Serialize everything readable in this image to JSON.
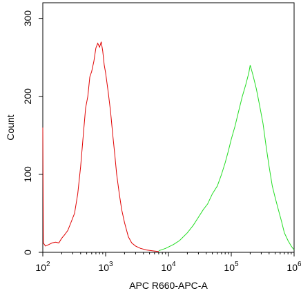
{
  "chart_data": {
    "type": "line",
    "title": "",
    "xlabel": "APC R660-APC-A",
    "ylabel": "Count",
    "x_scale": "log",
    "xlim": [
      100,
      1000000
    ],
    "ylim": [
      0,
      320
    ],
    "x_ticks": [
      {
        "value": 100,
        "base": "10",
        "exp": "2"
      },
      {
        "value": 1000,
        "base": "10",
        "exp": "3"
      },
      {
        "value": 10000,
        "base": "10",
        "exp": "4"
      },
      {
        "value": 100000,
        "base": "10",
        "exp": "5"
      },
      {
        "value": 1000000,
        "base": "10",
        "exp": "6"
      }
    ],
    "y_ticks": [
      "0",
      "100",
      "200",
      "300"
    ],
    "y_tick_values": [
      0,
      100,
      200,
      300
    ],
    "grid": false,
    "legend": "none",
    "series": [
      {
        "color": "#e00000",
        "points": [
          [
            100,
            160
          ],
          [
            102,
            12
          ],
          [
            110,
            8
          ],
          [
            125,
            10
          ],
          [
            140,
            12
          ],
          [
            160,
            13
          ],
          [
            180,
            12
          ],
          [
            200,
            18
          ],
          [
            220,
            22
          ],
          [
            250,
            28
          ],
          [
            280,
            38
          ],
          [
            320,
            50
          ],
          [
            360,
            75
          ],
          [
            400,
            110
          ],
          [
            440,
            150
          ],
          [
            480,
            185
          ],
          [
            520,
            200
          ],
          [
            560,
            225
          ],
          [
            600,
            232
          ],
          [
            650,
            245
          ],
          [
            700,
            262
          ],
          [
            750,
            268
          ],
          [
            800,
            263
          ],
          [
            850,
            270
          ],
          [
            900,
            258
          ],
          [
            950,
            240
          ],
          [
            1000,
            230
          ],
          [
            1100,
            205
          ],
          [
            1200,
            180
          ],
          [
            1300,
            150
          ],
          [
            1400,
            125
          ],
          [
            1500,
            100
          ],
          [
            1650,
            75
          ],
          [
            1800,
            55
          ],
          [
            2000,
            38
          ],
          [
            2300,
            20
          ],
          [
            2600,
            12
          ],
          [
            3000,
            8
          ],
          [
            3600,
            5
          ],
          [
            4500,
            3
          ],
          [
            5500,
            2
          ],
          [
            7000,
            1
          ]
        ]
      },
      {
        "color": "#22dd22",
        "points": [
          [
            7000,
            2
          ],
          [
            9000,
            5
          ],
          [
            12000,
            10
          ],
          [
            15000,
            15
          ],
          [
            20000,
            25
          ],
          [
            25000,
            35
          ],
          [
            30000,
            45
          ],
          [
            36000,
            55
          ],
          [
            42000,
            62
          ],
          [
            50000,
            75
          ],
          [
            60000,
            85
          ],
          [
            70000,
            100
          ],
          [
            80000,
            115
          ],
          [
            90000,
            130
          ],
          [
            100000,
            145
          ],
          [
            115000,
            162
          ],
          [
            130000,
            180
          ],
          [
            150000,
            200
          ],
          [
            170000,
            215
          ],
          [
            190000,
            230
          ],
          [
            200000,
            240
          ],
          [
            220000,
            228
          ],
          [
            250000,
            210
          ],
          [
            280000,
            190
          ],
          [
            320000,
            165
          ],
          [
            360000,
            135
          ],
          [
            400000,
            110
          ],
          [
            450000,
            85
          ],
          [
            500000,
            70
          ],
          [
            560000,
            55
          ],
          [
            630000,
            40
          ],
          [
            700000,
            25
          ],
          [
            800000,
            15
          ],
          [
            900000,
            8
          ],
          [
            1000000,
            3
          ]
        ]
      }
    ]
  }
}
